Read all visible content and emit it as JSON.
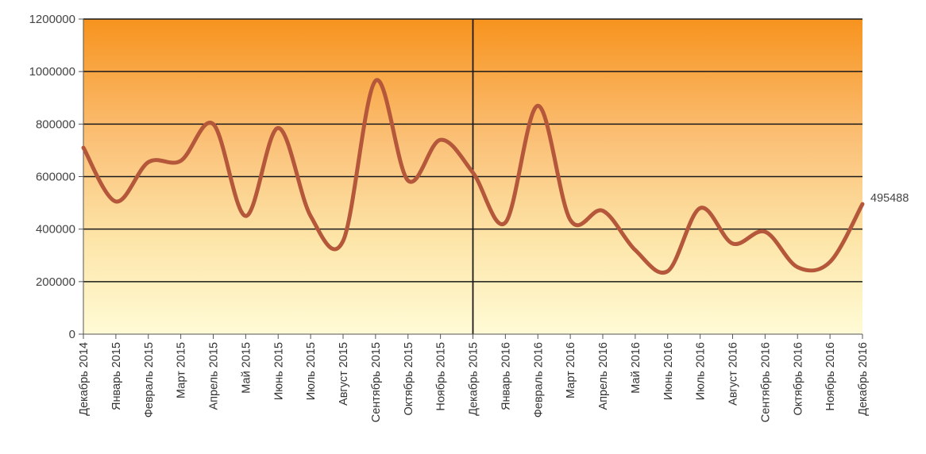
{
  "chart_data": {
    "type": "line",
    "title": "",
    "xlabel": "",
    "ylabel": "",
    "ylim": [
      0,
      1200000
    ],
    "yticks": [
      "0",
      "200000",
      "400000",
      "600000",
      "800000",
      "1000000",
      "1200000"
    ],
    "grid": true,
    "legend": "none",
    "categories": [
      "Декабрь 2014",
      "Январь 2015",
      "Февраль 2015",
      "Март 2015",
      "Апрель 2015",
      "Май 2015",
      "Июнь 2015",
      "Июль 2015",
      "Август 2015",
      "Сентябрь 2015",
      "Октябрь 2015",
      "Ноябрь 2015",
      "Декабрь 2015",
      "Январь 2016",
      "Февраль 2016",
      "Март 2016",
      "Апрель 2016",
      "Май 2016",
      "Июнь 2016",
      "Июль 2016",
      "Август 2016",
      "Сентябрь 2016",
      "Октябрь 2016",
      "Ноябрь 2016",
      "Декабрь 2016"
    ],
    "series": [
      {
        "values": [
          710000,
          505000,
          655000,
          660000,
          800000,
          450000,
          785000,
          450000,
          355000,
          965000,
          585000,
          740000,
          615000,
          425000,
          870000,
          435000,
          470000,
          320000,
          240000,
          480000,
          345000,
          390000,
          255000,
          275000,
          495488
        ]
      }
    ],
    "end_label": "495488",
    "divider_category": "Декабрь 2015",
    "colors": {
      "line": "#b5573a",
      "background_top": "#f7931e",
      "background_bottom": "#fffbd6",
      "grid": "#1a1a1a"
    }
  }
}
